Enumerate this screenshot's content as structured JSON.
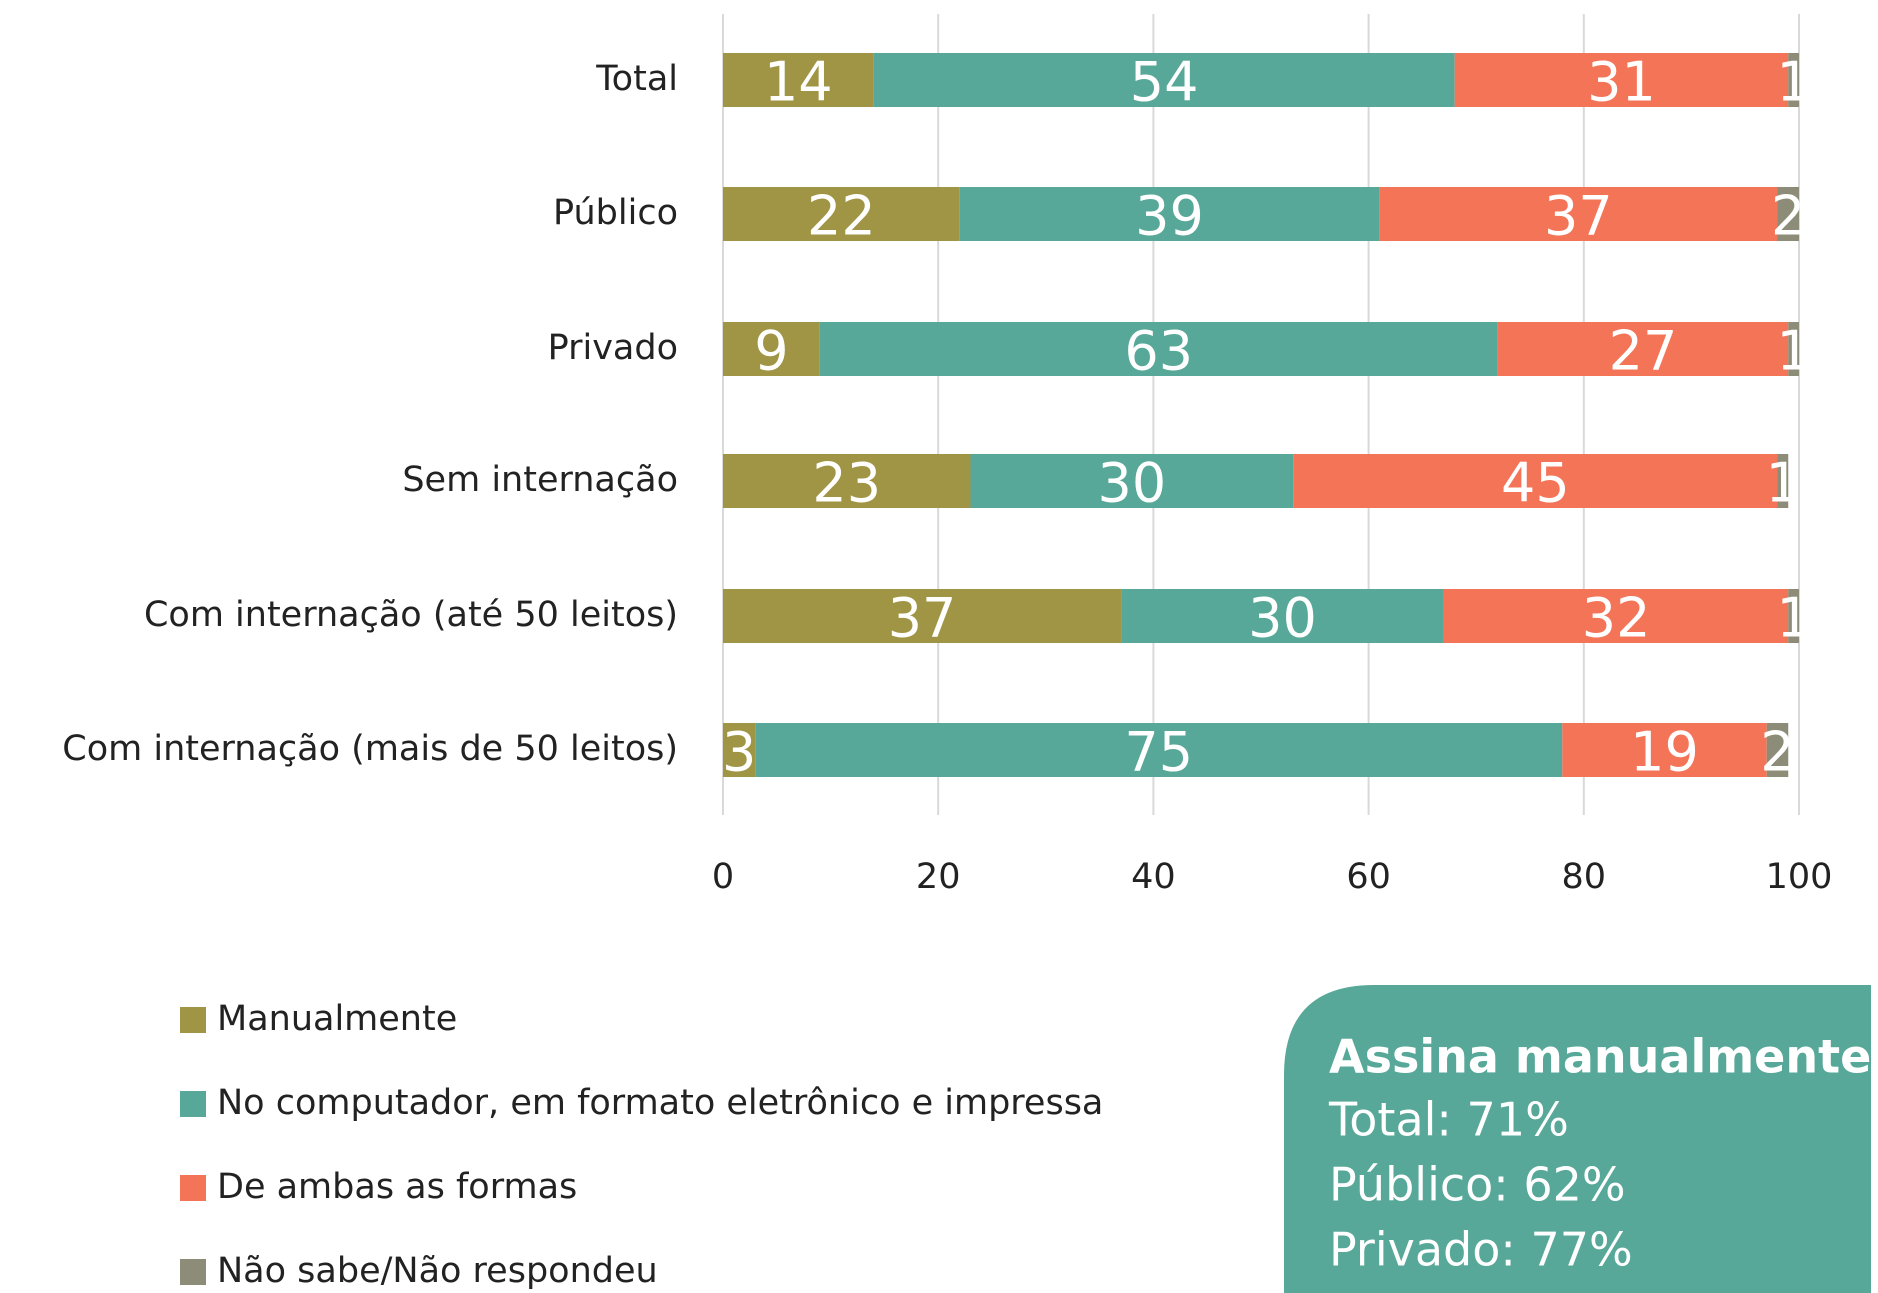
{
  "chart_data": {
    "type": "stacked_barh",
    "categories": [
      "Total",
      "Público",
      "Privado",
      "Sem internação",
      "Com internação (até 50 leitos)",
      "Com internação (mais de 50 leitos)"
    ],
    "series": [
      {
        "name": "Manualmente",
        "color": "#a09545",
        "values": [
          14,
          22,
          9,
          23,
          37,
          3
        ]
      },
      {
        "name": "No computador, em formato eletrônico e impressa",
        "color": "#57a898",
        "values": [
          54,
          39,
          63,
          30,
          30,
          75
        ]
      },
      {
        "name": "De ambas as formas",
        "color": "#f47458",
        "values": [
          31,
          37,
          27,
          45,
          32,
          19
        ]
      },
      {
        "name": "Não sabe/Não respondeu",
        "color": "#8c8c78",
        "values": [
          1,
          2,
          1,
          1,
          1,
          2
        ]
      }
    ],
    "xlim": [
      0,
      100
    ],
    "xticks": [
      0,
      20,
      40,
      60,
      80,
      100
    ],
    "grid": true,
    "legend": "bottom-left",
    "callout": {
      "title": "Assina manualmente",
      "lines": [
        "Total: 71%",
        "Público: 62%",
        "Privado: 77%"
      ],
      "color": "#57a898"
    }
  }
}
